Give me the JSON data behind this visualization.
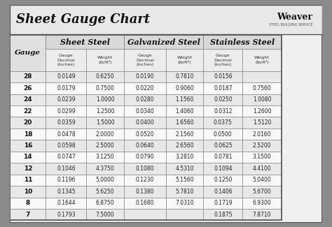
{
  "title": "Sheet Gauge Chart",
  "background_outer": "#8a8a8a",
  "background_inner": "#f0f0f0",
  "header_bg": "#d0d0d0",
  "row_bg_light": "#ffffff",
  "row_bg_dark": "#e0e0e0",
  "text_color": "#222222",
  "gauges": [
    28,
    26,
    24,
    22,
    20,
    18,
    16,
    14,
    12,
    11,
    10,
    8,
    7
  ],
  "sheet_steel": {
    "decimal": [
      "0.0149",
      "0.0179",
      "0.0239",
      "0.0299",
      "0.0359",
      "0.0478",
      "0.0598",
      "0.0747",
      "0.1046",
      "0.1196",
      "0.1345",
      "0.1644",
      "0.1793"
    ],
    "weight": [
      "0.6250",
      "0.7500",
      "1.0000",
      "1.2500",
      "1.5000",
      "2.0000",
      "2.5000",
      "3.1250",
      "4.3750",
      "5.0000",
      "5.6250",
      "6.8750",
      "7.5000"
    ]
  },
  "galvanized_steel": {
    "decimal": [
      "0.0190",
      "0.0220",
      "0.0280",
      "0.0340",
      "0.0400",
      "0.0520",
      "0.0640",
      "0.0790",
      "0.1080",
      "0.1230",
      "0.1380",
      "0.1680",
      ""
    ],
    "weight": [
      "0.7810",
      "0.9060",
      "1.1560",
      "1.4060",
      "1.6560",
      "2.1560",
      "2.6560",
      "3.2810",
      "4.5310",
      "5.1560",
      "5.7810",
      "7.0310",
      ""
    ]
  },
  "stainless_steel": {
    "decimal": [
      "0.0156",
      "0.0187",
      "0.0250",
      "0.0312",
      "0.0375",
      "0.0500",
      "0.0625",
      "0.0781",
      "0.1094",
      "0.1250",
      "0.1406",
      "0.1719",
      "0.1875"
    ],
    "weight": [
      "",
      "0.7560",
      "1.0080",
      "1.2600",
      "1.5120",
      "2.0160",
      "2.5200",
      "3.1500",
      "4.4100",
      "5.0400",
      "5.6700",
      "6.9300",
      "7.8710"
    ]
  }
}
